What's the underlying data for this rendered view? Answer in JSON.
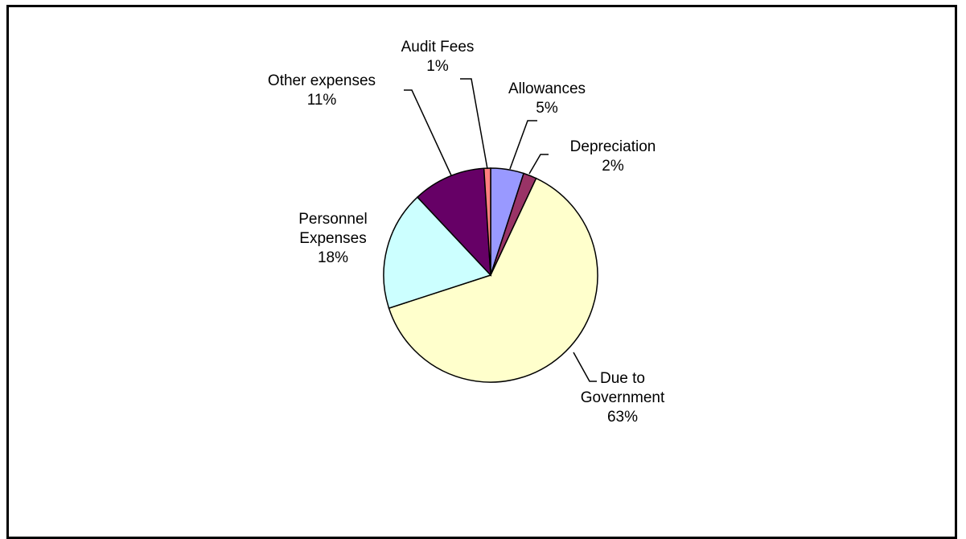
{
  "chart_data": {
    "type": "pie",
    "title": "",
    "slices": [
      {
        "label": "Allowances",
        "value": 5,
        "display": "5%",
        "color": "#9999ff"
      },
      {
        "label": "Depreciation",
        "value": 2,
        "display": "2%",
        "color": "#993366"
      },
      {
        "label": "Due to Government",
        "value": 63,
        "display": "63%",
        "color": "#ffffcc"
      },
      {
        "label": "Personnel Expenses",
        "value": 18,
        "display": "18%",
        "color": "#ccffff"
      },
      {
        "label": "Other expenses",
        "value": 11,
        "display": "11%",
        "color": "#660066"
      },
      {
        "label": "Audit Fees",
        "value": 1,
        "display": "1%",
        "color": "#ff8080"
      }
    ]
  }
}
